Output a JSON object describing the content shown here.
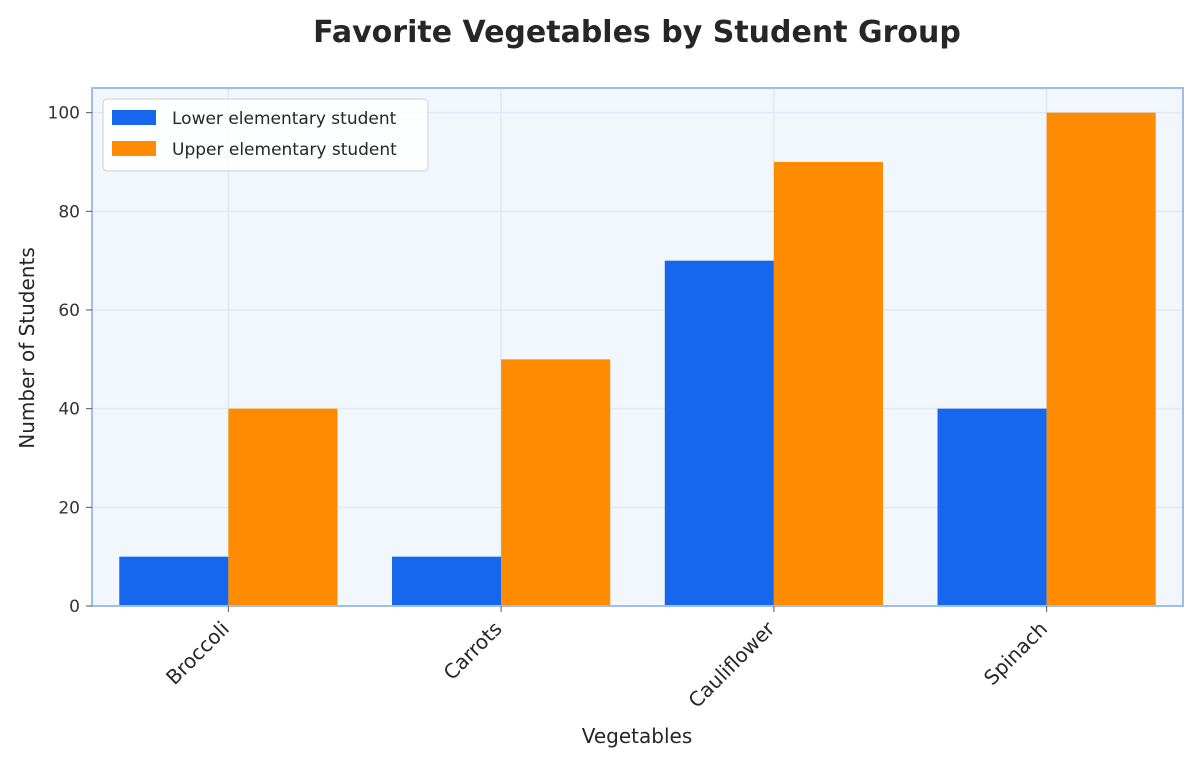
{
  "chart_data": {
    "type": "bar",
    "title": "Favorite Vegetables by Student Group",
    "xlabel": "Vegetables",
    "ylabel": "Number of Students",
    "categories": [
      "Broccoli",
      "Carrots",
      "Cauliflower",
      "Spinach"
    ],
    "series": [
      {
        "name": "Lower elementary student",
        "values": [
          10,
          10,
          70,
          40
        ],
        "color": "#1666EE"
      },
      {
        "name": "Upper elementary student",
        "values": [
          40,
          50,
          90,
          100
        ],
        "color": "#FF8C00"
      }
    ],
    "ylim": [
      0,
      105
    ],
    "yticks": [
      0,
      20,
      40,
      60,
      80,
      100
    ],
    "grid": true,
    "legend_position": "top-left",
    "colors": {
      "plot_background": "#F2F7FD",
      "plot_border": "#9DBDED",
      "grid": "#E1E8F3"
    }
  }
}
